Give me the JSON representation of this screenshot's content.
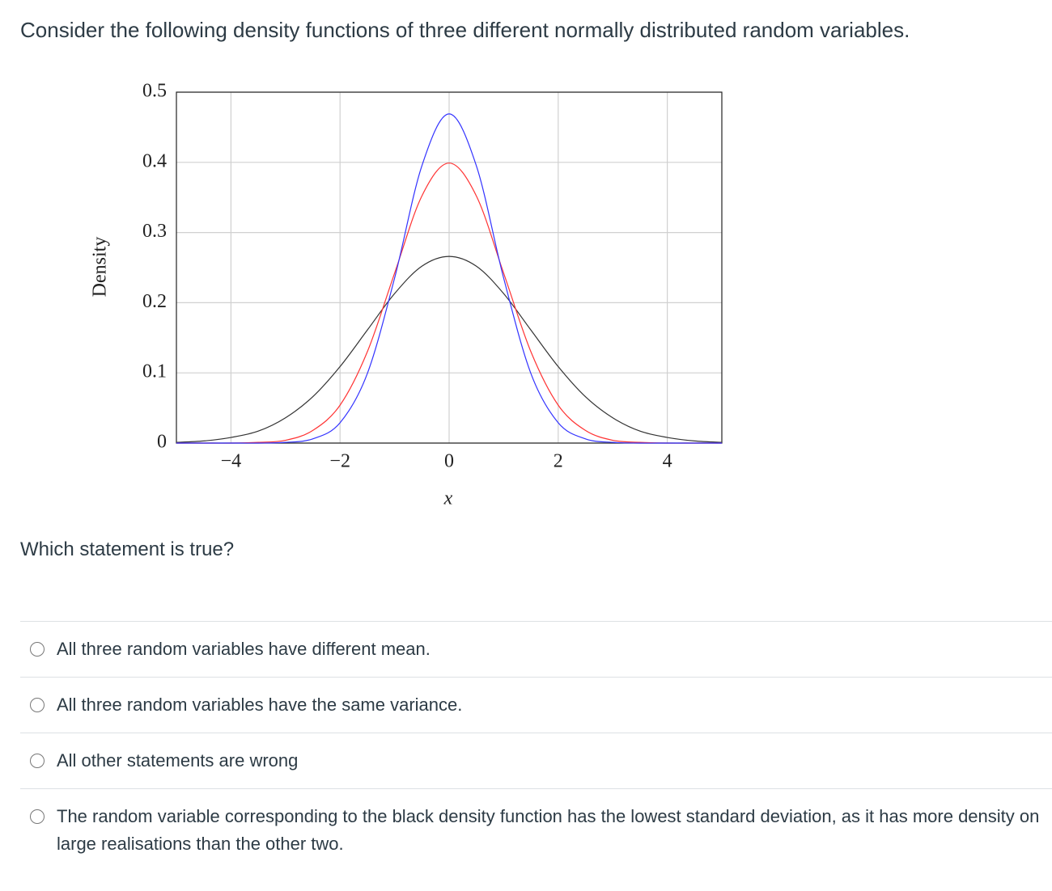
{
  "header": {
    "title": "Consider the following density functions of three different normally distributed random variables."
  },
  "chart_data": {
    "type": "line",
    "ylabel": "Density",
    "xlabel": "x",
    "x": [
      -5,
      -4.5,
      -4,
      -3.5,
      -3,
      -2.5,
      -2,
      -1.5,
      -1,
      -0.5,
      0,
      0.5,
      1,
      1.5,
      2,
      2.5,
      3,
      3.5,
      4,
      4.5,
      5
    ],
    "series": [
      {
        "color": "#333333",
        "values": [
          0.001,
          0.003,
          0.008,
          0.017,
          0.036,
          0.066,
          0.109,
          0.161,
          0.213,
          0.252,
          0.266,
          0.252,
          0.213,
          0.161,
          0.109,
          0.066,
          0.036,
          0.017,
          0.008,
          0.003,
          0.001
        ]
      },
      {
        "color": "#ff3333",
        "values": [
          0,
          0,
          0,
          0.001,
          0.004,
          0.018,
          0.054,
          0.13,
          0.242,
          0.352,
          0.399,
          0.352,
          0.242,
          0.13,
          0.054,
          0.018,
          0.004,
          0.001,
          0,
          0,
          0
        ]
      },
      {
        "color": "#3333ff",
        "values": [
          0,
          0,
          0,
          0,
          0.001,
          0.006,
          0.029,
          0.099,
          0.235,
          0.395,
          0.469,
          0.395,
          0.235,
          0.099,
          0.029,
          0.006,
          0.001,
          0,
          0,
          0,
          0
        ]
      }
    ],
    "xlim": [
      -5,
      5
    ],
    "ylim": [
      0,
      0.5
    ],
    "xticks": [
      {
        "value": -4,
        "label": "−4"
      },
      {
        "value": -2,
        "label": "−2"
      },
      0,
      2,
      4
    ],
    "yticks": [
      0,
      0.1,
      0.2,
      0.3,
      0.4,
      0.5
    ],
    "grid": true
  },
  "question": "Which statement is true?",
  "options": [
    "All three random variables have different mean.",
    "All three random variables have the same variance.",
    "All other statements are wrong",
    "The random variable corresponding to the black density function has the lowest standard deviation, as it has more density on large realisations than the other two."
  ]
}
